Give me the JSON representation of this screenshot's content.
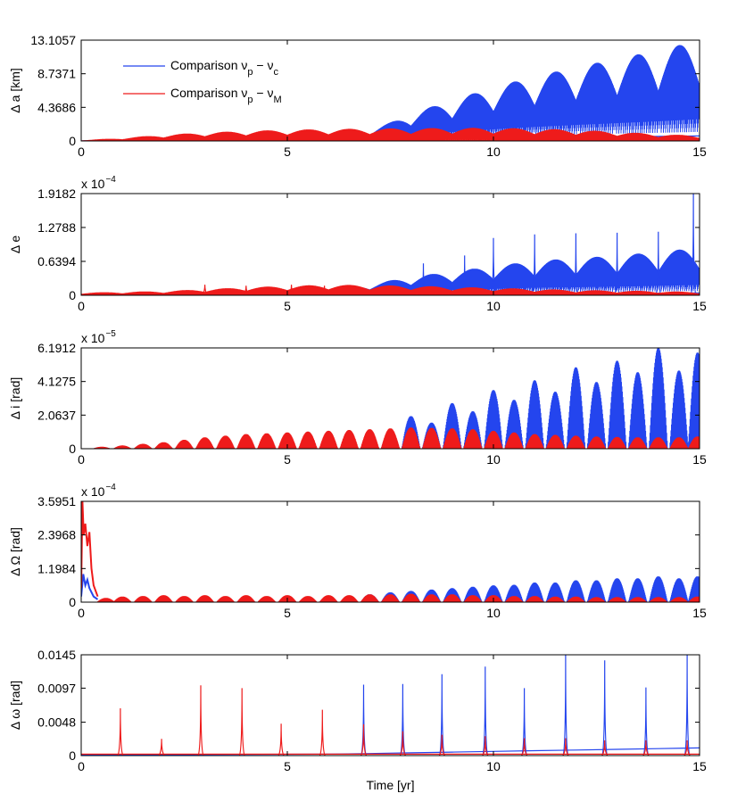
{
  "chart_data": [
    {
      "type": "line",
      "panel": "semi-major-axis",
      "ylabel": "Δ a [km]",
      "yscale_label": "",
      "xlim": [
        0,
        15
      ],
      "ylim": [
        0,
        13.1057
      ],
      "yticks": [
        "0",
        "4.3686",
        "8.7371",
        "13.1057"
      ],
      "xticks": [
        "0",
        "5",
        "10",
        "15"
      ],
      "xlabel": "",
      "legend": {
        "placement": "top-left",
        "entries": [
          {
            "base": "Comparison ν",
            "sub1": "p",
            "mid": " − ν",
            "sub2": "c",
            "color": "#2445ee"
          },
          {
            "base": "Comparison ν",
            "sub1": "p",
            "mid": " − ν",
            "sub2": "M",
            "color": "#ee1b1b"
          }
        ]
      },
      "series": [
        {
          "name": "Comparison νp − νc",
          "color": "#2445ee",
          "envelope": {
            "x": [
              0,
              2,
              4,
              6,
              7,
              7.5,
              8,
              9,
              10,
              11,
              12,
              13,
              14,
              15
            ],
            "y": [
              0.1,
              0.4,
              0.8,
              1.2,
              1.4,
              2.4,
              3.6,
              5.3,
              7.0,
              8.4,
              9.6,
              10.7,
              11.8,
              13.1
            ]
          },
          "oscillations_per_year": 1,
          "fill_from": 0.3
        },
        {
          "name": "Comparison νp − νM",
          "color": "#ee1b1b",
          "envelope": {
            "x": [
              0,
              1,
              2,
              3,
              4,
              5,
              6,
              7,
              8,
              9,
              10,
              11,
              12,
              13,
              14,
              15
            ],
            "y": [
              0.1,
              0.4,
              0.8,
              1.1,
              1.3,
              1.45,
              1.55,
              1.6,
              1.65,
              1.7,
              1.7,
              1.6,
              1.45,
              1.2,
              0.9,
              0.7
            ]
          },
          "oscillations_per_year": 1,
          "fill_from": 0.1
        }
      ]
    },
    {
      "type": "line",
      "panel": "eccentricity",
      "ylabel": "Δ e",
      "yscale_label": "x 10",
      "yscale_exp": "−4",
      "xlim": [
        0,
        15
      ],
      "ylim": [
        0,
        1.9182
      ],
      "yticks": [
        "0",
        "0.6394",
        "1.2788",
        "1.9182"
      ],
      "xticks": [
        "0",
        "5",
        "10",
        "15"
      ],
      "xlabel": "",
      "series": [
        {
          "name": "Comparison νp − νc",
          "color": "#2445ee",
          "envelope": {
            "x": [
              0,
              3,
              5,
              6,
              7,
              7.5,
              8,
              9,
              10,
              11,
              12,
              13,
              14,
              15
            ],
            "y": [
              0.03,
              0.05,
              0.08,
              0.12,
              0.2,
              0.28,
              0.35,
              0.45,
              0.55,
              0.65,
              0.7,
              0.75,
              0.82,
              0.9
            ]
          },
          "spikes": [
            {
              "x": 8.3,
              "y": 0.6
            },
            {
              "x": 9.3,
              "y": 0.75
            },
            {
              "x": 10.0,
              "y": 1.08
            },
            {
              "x": 11.0,
              "y": 1.15
            },
            {
              "x": 12.0,
              "y": 1.17
            },
            {
              "x": 13.0,
              "y": 1.18
            },
            {
              "x": 14.0,
              "y": 1.2
            },
            {
              "x": 14.85,
              "y": 1.9182
            }
          ],
          "oscillations_per_year": 1,
          "fill_from": 0.3
        },
        {
          "name": "Comparison νp − νM",
          "color": "#ee1b1b",
          "envelope": {
            "x": [
              0,
              2,
              4,
              6,
              8,
              10,
              12,
              14,
              15
            ],
            "y": [
              0.05,
              0.08,
              0.15,
              0.2,
              0.18,
              0.14,
              0.1,
              0.08,
              0.06
            ]
          },
          "spikes": [
            {
              "x": 3.0,
              "y": 0.2
            },
            {
              "x": 4.0,
              "y": 0.18
            },
            {
              "x": 5.1,
              "y": 0.2
            },
            {
              "x": 5.9,
              "y": 0.18
            }
          ],
          "oscillations_per_year": 1,
          "fill_from": 0.05
        }
      ]
    },
    {
      "type": "line",
      "panel": "inclination",
      "ylabel": "Δ i [rad]",
      "yscale_label": "x 10",
      "yscale_exp": "−5",
      "xlim": [
        0,
        15
      ],
      "ylim": [
        0,
        6.1912
      ],
      "yticks": [
        "0",
        "2.0637",
        "4.1275",
        "6.1912"
      ],
      "xticks": [
        "0",
        "5",
        "10",
        "15"
      ],
      "xlabel": "",
      "series": [
        {
          "name": "Comparison νp − νc",
          "color": "#2445ee",
          "lobes": [
            {
              "x": 0.5,
              "y": 0.1
            },
            {
              "x": 1.0,
              "y": 0.15
            },
            {
              "x": 1.5,
              "y": 0.2
            },
            {
              "x": 2.0,
              "y": 0.25
            },
            {
              "x": 2.5,
              "y": 0.3
            },
            {
              "x": 3.0,
              "y": 0.35
            },
            {
              "x": 3.5,
              "y": 0.4
            },
            {
              "x": 4.0,
              "y": 0.45
            },
            {
              "x": 4.5,
              "y": 0.5
            },
            {
              "x": 5.0,
              "y": 0.55
            },
            {
              "x": 5.5,
              "y": 0.6
            },
            {
              "x": 6.0,
              "y": 0.65
            },
            {
              "x": 6.5,
              "y": 0.7
            },
            {
              "x": 7.0,
              "y": 0.8
            },
            {
              "x": 7.5,
              "y": 1.1
            },
            {
              "x": 8.0,
              "y": 2.0
            },
            {
              "x": 8.5,
              "y": 1.6
            },
            {
              "x": 9.0,
              "y": 2.8
            },
            {
              "x": 9.5,
              "y": 2.3
            },
            {
              "x": 10.0,
              "y": 3.6
            },
            {
              "x": 10.5,
              "y": 3.0
            },
            {
              "x": 11.0,
              "y": 4.2
            },
            {
              "x": 11.5,
              "y": 3.5
            },
            {
              "x": 12.0,
              "y": 5.0
            },
            {
              "x": 12.5,
              "y": 4.1
            },
            {
              "x": 13.0,
              "y": 5.4
            },
            {
              "x": 13.5,
              "y": 4.7
            },
            {
              "x": 14.0,
              "y": 6.1912
            },
            {
              "x": 14.5,
              "y": 4.8
            },
            {
              "x": 14.95,
              "y": 5.9
            }
          ]
        },
        {
          "name": "Comparison νp − νM",
          "color": "#ee1b1b",
          "lobes": [
            {
              "x": 0.5,
              "y": 0.12
            },
            {
              "x": 1.0,
              "y": 0.2
            },
            {
              "x": 1.5,
              "y": 0.3
            },
            {
              "x": 2.0,
              "y": 0.4
            },
            {
              "x": 2.5,
              "y": 0.55
            },
            {
              "x": 3.0,
              "y": 0.7
            },
            {
              "x": 3.5,
              "y": 0.8
            },
            {
              "x": 4.0,
              "y": 0.9
            },
            {
              "x": 4.5,
              "y": 0.95
            },
            {
              "x": 5.0,
              "y": 1.0
            },
            {
              "x": 5.5,
              "y": 1.05
            },
            {
              "x": 6.0,
              "y": 1.1
            },
            {
              "x": 6.5,
              "y": 1.15
            },
            {
              "x": 7.0,
              "y": 1.2
            },
            {
              "x": 7.5,
              "y": 1.25
            },
            {
              "x": 8.0,
              "y": 1.3
            },
            {
              "x": 8.5,
              "y": 1.28
            },
            {
              "x": 9.0,
              "y": 1.25
            },
            {
              "x": 9.5,
              "y": 1.2
            },
            {
              "x": 10.0,
              "y": 1.1
            },
            {
              "x": 10.5,
              "y": 1.0
            },
            {
              "x": 11.0,
              "y": 0.9
            },
            {
              "x": 11.5,
              "y": 0.85
            },
            {
              "x": 12.0,
              "y": 0.8
            },
            {
              "x": 12.5,
              "y": 0.75
            },
            {
              "x": 13.0,
              "y": 0.72
            },
            {
              "x": 13.5,
              "y": 0.7
            },
            {
              "x": 14.0,
              "y": 0.7
            },
            {
              "x": 14.5,
              "y": 0.7
            },
            {
              "x": 14.95,
              "y": 0.75
            }
          ]
        }
      ]
    },
    {
      "type": "line",
      "panel": "raan",
      "ylabel": "Δ Ω [rad]",
      "yscale_label": "x 10",
      "yscale_exp": "−4",
      "xlim": [
        0,
        15
      ],
      "ylim": [
        0,
        3.5951
      ],
      "yticks": [
        "0",
        "1.1984",
        "2.3968",
        "3.5951"
      ],
      "xticks": [
        "0",
        "5",
        "10",
        "15"
      ],
      "xlabel": "",
      "series": [
        {
          "name": "Comparison νp − νc",
          "color": "#2445ee",
          "initial_transient": {
            "x": [
              0,
              0.05,
              0.1,
              0.15,
              0.2,
              0.3,
              0.4
            ],
            "y": [
              0.2,
              1.0,
              0.6,
              0.8,
              0.5,
              0.2,
              0.1
            ]
          },
          "lobes": [
            {
              "x": 1.0,
              "y": 0.12
            },
            {
              "x": 2.0,
              "y": 0.14
            },
            {
              "x": 3.0,
              "y": 0.16
            },
            {
              "x": 4.0,
              "y": 0.18
            },
            {
              "x": 5.0,
              "y": 0.2
            },
            {
              "x": 6.0,
              "y": 0.22
            },
            {
              "x": 7.0,
              "y": 0.28
            },
            {
              "x": 7.5,
              "y": 0.35
            },
            {
              "x": 8.0,
              "y": 0.4
            },
            {
              "x": 8.5,
              "y": 0.45
            },
            {
              "x": 9.0,
              "y": 0.5
            },
            {
              "x": 9.5,
              "y": 0.55
            },
            {
              "x": 10.0,
              "y": 0.6
            },
            {
              "x": 10.5,
              "y": 0.62
            },
            {
              "x": 11.0,
              "y": 0.7
            },
            {
              "x": 11.5,
              "y": 0.7
            },
            {
              "x": 12.0,
              "y": 0.78
            },
            {
              "x": 12.5,
              "y": 0.78
            },
            {
              "x": 13.0,
              "y": 0.85
            },
            {
              "x": 13.5,
              "y": 0.85
            },
            {
              "x": 14.0,
              "y": 0.92
            },
            {
              "x": 14.5,
              "y": 0.85
            },
            {
              "x": 14.95,
              "y": 0.92
            }
          ]
        },
        {
          "name": "Comparison νp − νM",
          "color": "#ee1b1b",
          "initial_transient": {
            "x": [
              0,
              0.03,
              0.06,
              0.1,
              0.15,
              0.2,
              0.25,
              0.3,
              0.4
            ],
            "y": [
              0.5,
              3.5951,
              2.4,
              2.8,
              2.0,
              2.5,
              1.2,
              0.6,
              0.2
            ]
          },
          "lobes": [
            {
              "x": 0.6,
              "y": 0.15
            },
            {
              "x": 1.0,
              "y": 0.2
            },
            {
              "x": 1.5,
              "y": 0.22
            },
            {
              "x": 2.0,
              "y": 0.25
            },
            {
              "x": 2.5,
              "y": 0.22
            },
            {
              "x": 3.0,
              "y": 0.25
            },
            {
              "x": 3.5,
              "y": 0.22
            },
            {
              "x": 4.0,
              "y": 0.25
            },
            {
              "x": 4.5,
              "y": 0.22
            },
            {
              "x": 5.0,
              "y": 0.25
            },
            {
              "x": 5.5,
              "y": 0.22
            },
            {
              "x": 6.0,
              "y": 0.25
            },
            {
              "x": 6.5,
              "y": 0.25
            },
            {
              "x": 7.0,
              "y": 0.28
            },
            {
              "x": 7.5,
              "y": 0.28
            },
            {
              "x": 8.0,
              "y": 0.3
            },
            {
              "x": 8.5,
              "y": 0.28
            },
            {
              "x": 9.0,
              "y": 0.28
            },
            {
              "x": 9.5,
              "y": 0.25
            },
            {
              "x": 10.0,
              "y": 0.25
            },
            {
              "x": 10.5,
              "y": 0.22
            },
            {
              "x": 11.0,
              "y": 0.22
            },
            {
              "x": 11.5,
              "y": 0.2
            },
            {
              "x": 12.0,
              "y": 0.2
            },
            {
              "x": 12.5,
              "y": 0.18
            },
            {
              "x": 13.0,
              "y": 0.18
            },
            {
              "x": 13.5,
              "y": 0.18
            },
            {
              "x": 14.0,
              "y": 0.18
            },
            {
              "x": 14.5,
              "y": 0.18
            },
            {
              "x": 14.95,
              "y": 0.2
            }
          ]
        }
      ]
    },
    {
      "type": "line",
      "panel": "argument-of-perigee",
      "ylabel": "Δ ω [rad]",
      "yscale_label": "",
      "xlim": [
        0,
        15
      ],
      "ylim": [
        0,
        0.0145
      ],
      "yticks": [
        "0",
        "0.0048",
        "0.0097",
        "0.0145"
      ],
      "xticks": [
        "0",
        "5",
        "10",
        "15"
      ],
      "xlabel": "Time [yr]",
      "series": [
        {
          "name": "Comparison νp − νc",
          "color": "#2445ee",
          "spikes": [
            {
              "x": 6.85,
              "y": 0.0102
            },
            {
              "x": 7.8,
              "y": 0.0103
            },
            {
              "x": 8.75,
              "y": 0.0117
            },
            {
              "x": 9.8,
              "y": 0.0128
            },
            {
              "x": 10.75,
              "y": 0.0097
            },
            {
              "x": 11.75,
              "y": 0.0145
            },
            {
              "x": 12.7,
              "y": 0.0137
            },
            {
              "x": 13.7,
              "y": 0.0098
            },
            {
              "x": 14.7,
              "y": 0.0145
            }
          ],
          "background": {
            "x": [
              0,
              6,
              7,
              8,
              9,
              10,
              11,
              12,
              13,
              14,
              15
            ],
            "y": [
              0.0001,
              0.0002,
              0.0003,
              0.0004,
              0.0005,
              0.0006,
              0.0007,
              0.0008,
              0.0009,
              0.001,
              0.0011
            ]
          }
        },
        {
          "name": "Comparison νp − νM",
          "color": "#ee1b1b",
          "spikes": [
            {
              "x": 0.95,
              "y": 0.0068
            },
            {
              "x": 1.95,
              "y": 0.0024
            },
            {
              "x": 2.9,
              "y": 0.0101
            },
            {
              "x": 3.9,
              "y": 0.0097
            },
            {
              "x": 4.85,
              "y": 0.0046
            },
            {
              "x": 5.85,
              "y": 0.0066
            },
            {
              "x": 6.85,
              "y": 0.0045
            },
            {
              "x": 7.8,
              "y": 0.0035
            },
            {
              "x": 8.75,
              "y": 0.003
            },
            {
              "x": 9.8,
              "y": 0.0028
            },
            {
              "x": 10.75,
              "y": 0.0025
            },
            {
              "x": 11.75,
              "y": 0.0025
            },
            {
              "x": 12.7,
              "y": 0.0022
            },
            {
              "x": 13.7,
              "y": 0.0022
            },
            {
              "x": 14.7,
              "y": 0.0022
            }
          ],
          "background": {
            "x": [
              0,
              15
            ],
            "y": [
              0.0002,
              0.0002
            ]
          }
        }
      ]
    }
  ]
}
